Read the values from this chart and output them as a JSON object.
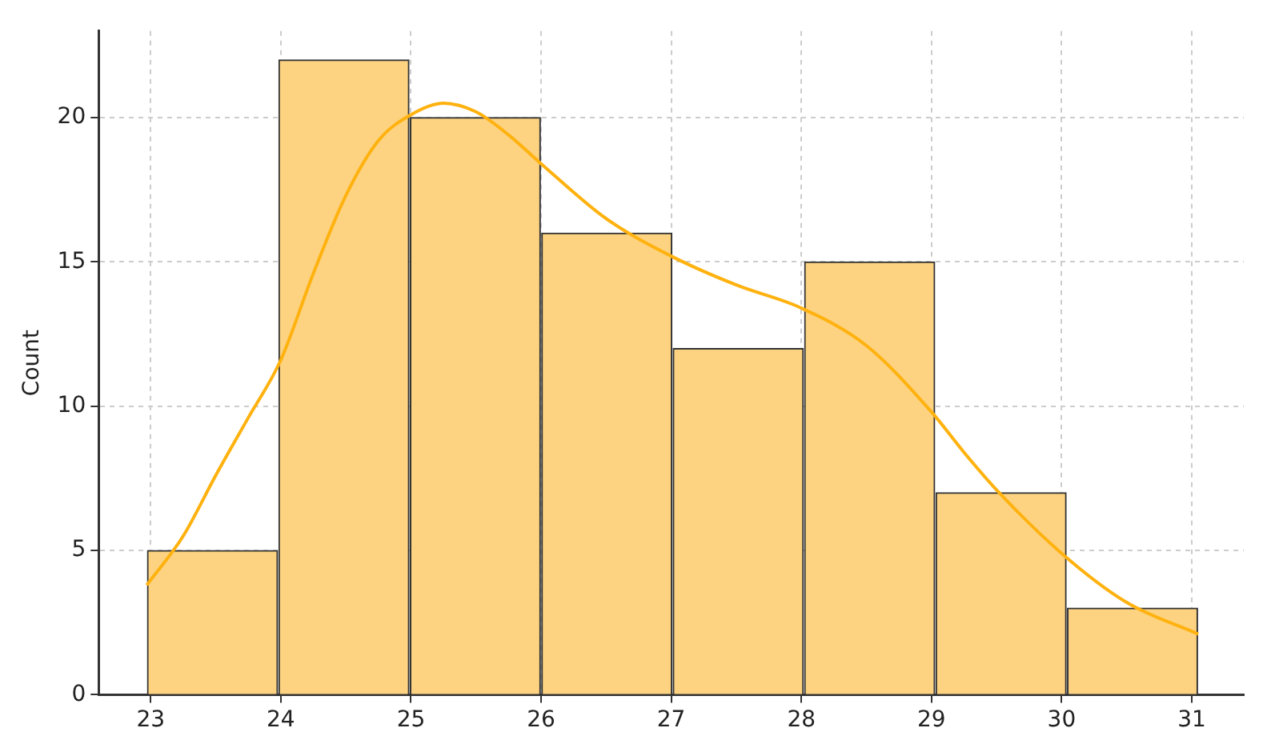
{
  "chart_data": {
    "type": "histogram",
    "ylabel": "Count",
    "bins": [
      22.97,
      23.98,
      24.99,
      26.0,
      27.01,
      28.02,
      29.03,
      30.04,
      31.05
    ],
    "values": [
      5,
      22,
      20,
      16,
      12,
      15,
      7,
      3
    ],
    "color": "#fdd381",
    "series": [
      {
        "type": "line",
        "color": "#ffb20f",
        "x": [
          22.97,
          23.25,
          23.5,
          23.75,
          24.0,
          24.25,
          24.5,
          24.75,
          25.0,
          25.25,
          25.5,
          25.75,
          26.0,
          26.5,
          27.0,
          27.5,
          28.0,
          28.5,
          29.0,
          29.25,
          29.5,
          30.0,
          30.5,
          31.05
        ],
        "values": [
          3.8,
          5.5,
          7.6,
          9.6,
          11.6,
          14.6,
          17.3,
          19.2,
          20.1,
          20.5,
          20.2,
          19.4,
          18.4,
          16.5,
          15.2,
          14.2,
          13.4,
          12.1,
          9.8,
          8.4,
          7.1,
          4.9,
          3.2,
          2.1
        ]
      }
    ],
    "xlim": [
      22.6,
      31.4
    ],
    "xticks": [
      23,
      24,
      25,
      26,
      27,
      28,
      29,
      30,
      31
    ],
    "ylim": [
      0,
      23
    ],
    "yticks": [
      0,
      5,
      10,
      15,
      20
    ],
    "grid": true,
    "legend": false
  }
}
